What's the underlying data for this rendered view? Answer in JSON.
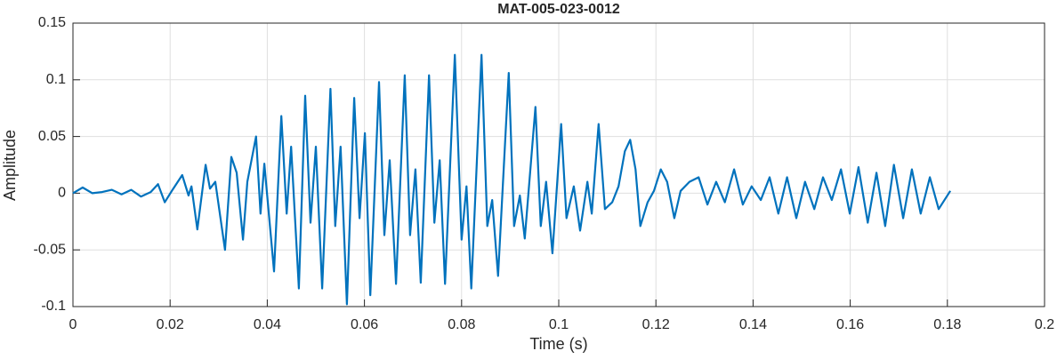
{
  "chart_data": {
    "type": "line",
    "title": "MAT-005-023-0012",
    "x_label": "Time (s)",
    "y_label": "Amplitude",
    "x": [
      0,
      0.002,
      0.004,
      0.006,
      0.008,
      0.01,
      0.012,
      0.014,
      0.016,
      0.0175,
      0.0189,
      0.0205,
      0.0225,
      0.0238,
      0.0244,
      0.0256,
      0.0273,
      0.0282,
      0.0293,
      0.0313,
      0.0326,
      0.0337,
      0.035,
      0.0359,
      0.0377,
      0.0386,
      0.0394,
      0.0414,
      0.0429,
      0.044,
      0.0449,
      0.0465,
      0.0478,
      0.0489,
      0.05,
      0.0513,
      0.053,
      0.054,
      0.0551,
      0.0564,
      0.0579,
      0.059,
      0.0601,
      0.0612,
      0.063,
      0.0641,
      0.0652,
      0.0665,
      0.0683,
      0.0694,
      0.0705,
      0.0716,
      0.0733,
      0.0744,
      0.0755,
      0.0766,
      0.0786,
      0.08,
      0.081,
      0.082,
      0.0841,
      0.0853,
      0.0863,
      0.0875,
      0.0897,
      0.0908,
      0.092,
      0.093,
      0.0952,
      0.0963,
      0.0974,
      0.0987,
      0.1005,
      0.1016,
      0.1031,
      0.1044,
      0.1059,
      0.1068,
      0.1082,
      0.1095,
      0.111,
      0.1123,
      0.1136,
      0.1147,
      0.1158,
      0.1168,
      0.1183,
      0.1196,
      0.121,
      0.1223,
      0.1238,
      0.1251,
      0.1269,
      0.1288,
      0.1306,
      0.1324,
      0.1342,
      0.1361,
      0.1379,
      0.1397,
      0.1416,
      0.1434,
      0.1452,
      0.147,
      0.1489,
      0.1507,
      0.1526,
      0.1544,
      0.1562,
      0.1581,
      0.1599,
      0.1617,
      0.1636,
      0.1654,
      0.1672,
      0.169,
      0.1709,
      0.1727,
      0.1745,
      0.1764,
      0.1782,
      0.1806
    ],
    "series": [
      {
        "name": "Amplitude",
        "color": "#0072bd",
        "values": [
          0,
          0.005,
          0,
          0.001,
          0.003,
          -0.001,
          0.003,
          -0.003,
          0.001,
          0.008,
          -0.008,
          0.003,
          0.016,
          -0.002,
          0.006,
          -0.032,
          0.025,
          0.004,
          0.01,
          -0.05,
          0.032,
          0.018,
          -0.041,
          0.01,
          0.05,
          -0.018,
          0.026,
          -0.069,
          0.068,
          -0.018,
          0.041,
          -0.084,
          0.086,
          -0.026,
          0.041,
          -0.084,
          0.092,
          -0.029,
          0.041,
          -0.098,
          0.084,
          -0.022,
          0.053,
          -0.09,
          0.098,
          -0.037,
          0.029,
          -0.08,
          0.104,
          -0.037,
          0.021,
          -0.079,
          0.104,
          -0.026,
          0.029,
          -0.08,
          0.122,
          -0.041,
          0.006,
          -0.084,
          0.122,
          -0.029,
          -0.006,
          -0.073,
          0.106,
          -0.029,
          -0.002,
          -0.04,
          0.076,
          -0.029,
          0.01,
          -0.053,
          0.061,
          -0.022,
          0.006,
          -0.033,
          0.01,
          -0.018,
          0.061,
          -0.014,
          -0.008,
          0.006,
          0.037,
          0.047,
          0.021,
          -0.029,
          -0.008,
          0.002,
          0.021,
          0.01,
          -0.022,
          0.002,
          0.01,
          0.014,
          -0.01,
          0.01,
          -0.008,
          0.021,
          -0.01,
          0.006,
          -0.006,
          0.014,
          -0.018,
          0.014,
          -0.022,
          0.01,
          -0.014,
          0.014,
          -0.006,
          0.021,
          -0.018,
          0.023,
          -0.026,
          0.018,
          -0.029,
          0.025,
          -0.022,
          0.021,
          -0.018,
          0.014,
          -0.014,
          0.002
        ]
      }
    ],
    "xlim": [
      0,
      0.2
    ],
    "xticks": [
      0,
      0.02,
      0.04,
      0.06,
      0.08,
      0.1,
      0.12,
      0.14,
      0.16,
      0.18,
      0.2
    ],
    "ylim": [
      -0.1,
      0.15
    ],
    "yticks": [
      -0.1,
      -0.05,
      0,
      0.05,
      0.1,
      0.15
    ],
    "grid": true
  }
}
